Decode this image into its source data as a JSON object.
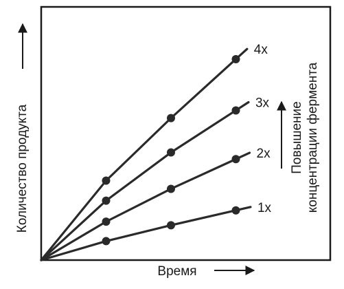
{
  "chart_data": {
    "type": "line",
    "title": "",
    "xlabel": "Время",
    "ylabel": "Количество продукта",
    "right_label_line1": "Повышение",
    "right_label_line2": "концентрации фермента",
    "grid": false,
    "x_ticks_shown": false,
    "y_ticks_shown": false,
    "xlim": [
      0,
      4
    ],
    "ylim": [
      0,
      4
    ],
    "series": [
      {
        "name": "1x",
        "x": [
          0,
          1,
          2,
          3
        ],
        "y": [
          0,
          0.37,
          0.68,
          0.97
        ],
        "color": "#2a2a2a"
      },
      {
        "name": "2x",
        "x": [
          0,
          1,
          2,
          3
        ],
        "y": [
          0,
          0.75,
          1.39,
          1.97
        ],
        "color": "#2a2a2a"
      },
      {
        "name": "3x",
        "x": [
          0,
          1,
          2,
          3
        ],
        "y": [
          0,
          1.16,
          2.1,
          2.92
        ],
        "color": "#2a2a2a"
      },
      {
        "name": "4x",
        "x": [
          0,
          1,
          2,
          3
        ],
        "y": [
          0,
          1.55,
          2.77,
          3.92
        ],
        "color": "#2a2a2a"
      }
    ]
  }
}
